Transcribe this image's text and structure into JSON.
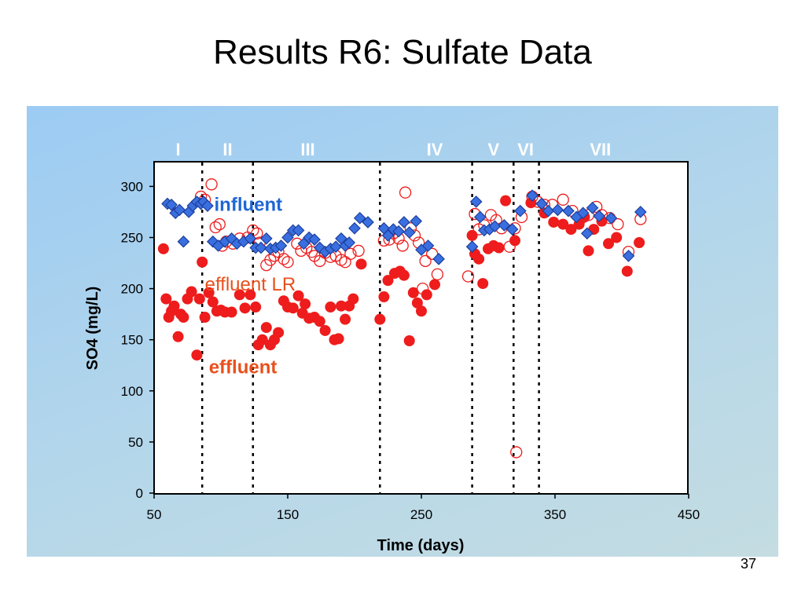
{
  "slide": {
    "title": "Results R6: Sulfate Data",
    "number": "37"
  },
  "colors": {
    "influent": "#3a6fe0",
    "effluent": "#ee1c1c",
    "effluent_lr": "#ee1c1c",
    "label_influent": "#1f66d6",
    "label_effluent": "#e8501c",
    "phase_label": "#ffffff"
  },
  "chart_data": {
    "type": "scatter",
    "xlabel": "Time (days)",
    "ylabel": "SO4 (mg/L)",
    "xlim": [
      50,
      450
    ],
    "ylim": [
      0,
      320
    ],
    "xticks": [
      50,
      150,
      250,
      350,
      450
    ],
    "yticks": [
      0,
      50,
      100,
      150,
      200,
      250,
      300
    ],
    "grid": false,
    "phase_boundaries": [
      86,
      124,
      219,
      288,
      319,
      338
    ],
    "phases": [
      {
        "label": "I",
        "x": 68
      },
      {
        "label": "II",
        "x": 105
      },
      {
        "label": "III",
        "x": 165
      },
      {
        "label": "IV",
        "x": 260
      },
      {
        "label": "V",
        "x": 304
      },
      {
        "label": "VI",
        "x": 328
      },
      {
        "label": "VII",
        "x": 384
      }
    ],
    "annotations": [
      {
        "text": "influent",
        "x": 95,
        "y": 276,
        "color_key": "label_influent"
      },
      {
        "text": "effluent LR",
        "x": 88,
        "y": 198,
        "color_key": "label_effluent"
      },
      {
        "text": "effluent",
        "x": 91,
        "y": 117,
        "color_key": "label_effluent"
      }
    ],
    "series": [
      {
        "name": "influent",
        "marker": "diamond",
        "color_key": "influent",
        "points": [
          [
            60,
            283
          ],
          [
            63,
            282
          ],
          [
            66,
            274
          ],
          [
            69,
            277
          ],
          [
            72,
            246
          ],
          [
            76,
            275
          ],
          [
            79,
            281
          ],
          [
            82,
            285
          ],
          [
            85,
            283
          ],
          [
            87,
            285
          ],
          [
            90,
            281
          ],
          [
            94,
            246
          ],
          [
            98,
            242
          ],
          [
            103,
            246
          ],
          [
            108,
            249
          ],
          [
            112,
            244
          ],
          [
            117,
            246
          ],
          [
            122,
            249
          ],
          [
            126,
            240
          ],
          [
            130,
            240
          ],
          [
            134,
            249
          ],
          [
            137,
            239
          ],
          [
            141,
            240
          ],
          [
            145,
            242
          ],
          [
            150,
            250
          ],
          [
            154,
            257
          ],
          [
            158,
            257
          ],
          [
            162,
            244
          ],
          [
            166,
            250
          ],
          [
            170,
            248
          ],
          [
            174,
            240
          ],
          [
            178,
            236
          ],
          [
            182,
            239
          ],
          [
            186,
            241
          ],
          [
            190,
            249
          ],
          [
            193,
            242
          ],
          [
            196,
            245
          ],
          [
            200,
            259
          ],
          [
            204,
            269
          ],
          [
            210,
            265
          ],
          [
            222,
            259
          ],
          [
            225,
            252
          ],
          [
            229,
            258
          ],
          [
            233,
            256
          ],
          [
            237,
            265
          ],
          [
            241,
            255
          ],
          [
            246,
            266
          ],
          [
            250,
            238
          ],
          [
            255,
            242
          ],
          [
            263,
            229
          ],
          [
            288,
            241
          ],
          [
            291,
            285
          ],
          [
            294,
            270
          ],
          [
            297,
            257
          ],
          [
            301,
            258
          ],
          [
            305,
            261
          ],
          [
            312,
            262
          ],
          [
            318,
            258
          ],
          [
            324,
            276
          ],
          [
            333,
            291
          ],
          [
            340,
            283
          ],
          [
            345,
            276
          ],
          [
            352,
            277
          ],
          [
            360,
            276
          ],
          [
            366,
            270
          ],
          [
            371,
            274
          ],
          [
            374,
            254
          ],
          [
            378,
            279
          ],
          [
            383,
            271
          ],
          [
            392,
            269
          ],
          [
            405,
            232
          ],
          [
            414,
            275
          ]
        ]
      },
      {
        "name": "effluent",
        "marker": "filled-circle",
        "color_key": "effluent",
        "points": [
          [
            57,
            239
          ],
          [
            59,
            190
          ],
          [
            61,
            172
          ],
          [
            63,
            178
          ],
          [
            65,
            183
          ],
          [
            68,
            153
          ],
          [
            70,
            175
          ],
          [
            72,
            172
          ],
          [
            75,
            190
          ],
          [
            78,
            197
          ],
          [
            82,
            135
          ],
          [
            84,
            190
          ],
          [
            86,
            226
          ],
          [
            88,
            172
          ],
          [
            91,
            196
          ],
          [
            94,
            187
          ],
          [
            97,
            178
          ],
          [
            100,
            179
          ],
          [
            103,
            177
          ],
          [
            108,
            177
          ],
          [
            114,
            194
          ],
          [
            118,
            181
          ],
          [
            122,
            194
          ],
          [
            126,
            182
          ],
          [
            128,
            145
          ],
          [
            131,
            150
          ],
          [
            134,
            162
          ],
          [
            137,
            145
          ],
          [
            140,
            150
          ],
          [
            143,
            157
          ],
          [
            147,
            188
          ],
          [
            150,
            182
          ],
          [
            154,
            181
          ],
          [
            158,
            193
          ],
          [
            161,
            176
          ],
          [
            163,
            185
          ],
          [
            166,
            171
          ],
          [
            170,
            172
          ],
          [
            174,
            168
          ],
          [
            178,
            159
          ],
          [
            182,
            182
          ],
          [
            185,
            150
          ],
          [
            188,
            151
          ],
          [
            190,
            183
          ],
          [
            193,
            170
          ],
          [
            196,
            183
          ],
          [
            199,
            190
          ],
          [
            205,
            224
          ],
          [
            219,
            170
          ],
          [
            222,
            192
          ],
          [
            225,
            208
          ],
          [
            230,
            215
          ],
          [
            234,
            217
          ],
          [
            237,
            213
          ],
          [
            241,
            149
          ],
          [
            244,
            196
          ],
          [
            247,
            186
          ],
          [
            250,
            178
          ],
          [
            254,
            194
          ],
          [
            260,
            204
          ],
          [
            288,
            252
          ],
          [
            290,
            234
          ],
          [
            293,
            229
          ],
          [
            296,
            205
          ],
          [
            300,
            239
          ],
          [
            304,
            242
          ],
          [
            308,
            240
          ],
          [
            313,
            286
          ],
          [
            320,
            247
          ],
          [
            332,
            284
          ],
          [
            342,
            274
          ],
          [
            349,
            265
          ],
          [
            356,
            263
          ],
          [
            362,
            258
          ],
          [
            368,
            263
          ],
          [
            372,
            270
          ],
          [
            375,
            237
          ],
          [
            379,
            258
          ],
          [
            385,
            266
          ],
          [
            390,
            244
          ],
          [
            396,
            250
          ],
          [
            404,
            217
          ],
          [
            413,
            245
          ]
        ]
      },
      {
        "name": "effluent LR",
        "marker": "open-circle",
        "color_key": "effluent_lr",
        "points": [
          [
            85,
            290
          ],
          [
            88,
            287
          ],
          [
            93,
            302
          ],
          [
            96,
            260
          ],
          [
            99,
            263
          ],
          [
            101,
            242
          ],
          [
            104,
            246
          ],
          [
            109,
            244
          ],
          [
            114,
            249
          ],
          [
            120,
            250
          ],
          [
            124,
            257
          ],
          [
            127,
            254
          ],
          [
            129,
            245
          ],
          [
            134,
            223
          ],
          [
            137,
            228
          ],
          [
            140,
            232
          ],
          [
            143,
            236
          ],
          [
            147,
            229
          ],
          [
            150,
            226
          ],
          [
            157,
            244
          ],
          [
            160,
            237
          ],
          [
            164,
            240
          ],
          [
            168,
            236
          ],
          [
            170,
            232
          ],
          [
            174,
            227
          ],
          [
            178,
            235
          ],
          [
            182,
            231
          ],
          [
            186,
            232
          ],
          [
            190,
            228
          ],
          [
            193,
            226
          ],
          [
            197,
            234
          ],
          [
            203,
            237
          ],
          [
            222,
            247
          ],
          [
            226,
            248
          ],
          [
            229,
            254
          ],
          [
            233,
            249
          ],
          [
            236,
            242
          ],
          [
            238,
            294
          ],
          [
            242,
            259
          ],
          [
            245,
            252
          ],
          [
            248,
            245
          ],
          [
            251,
            200
          ],
          [
            253,
            227
          ],
          [
            258,
            234
          ],
          [
            262,
            214
          ],
          [
            285,
            212
          ],
          [
            290,
            273
          ],
          [
            293,
            258
          ],
          [
            297,
            262
          ],
          [
            302,
            272
          ],
          [
            306,
            267
          ],
          [
            310,
            259
          ],
          [
            316,
            241
          ],
          [
            320,
            259
          ],
          [
            325,
            270
          ],
          [
            333,
            290
          ],
          [
            337,
            285
          ],
          [
            342,
            282
          ],
          [
            348,
            282
          ],
          [
            356,
            287
          ],
          [
            363,
            276
          ],
          [
            369,
            268
          ],
          [
            375,
            272
          ],
          [
            381,
            280
          ],
          [
            385,
            272
          ],
          [
            391,
            269
          ],
          [
            397,
            263
          ],
          [
            405,
            236
          ],
          [
            414,
            268
          ],
          [
            321,
            40
          ]
        ]
      }
    ]
  }
}
